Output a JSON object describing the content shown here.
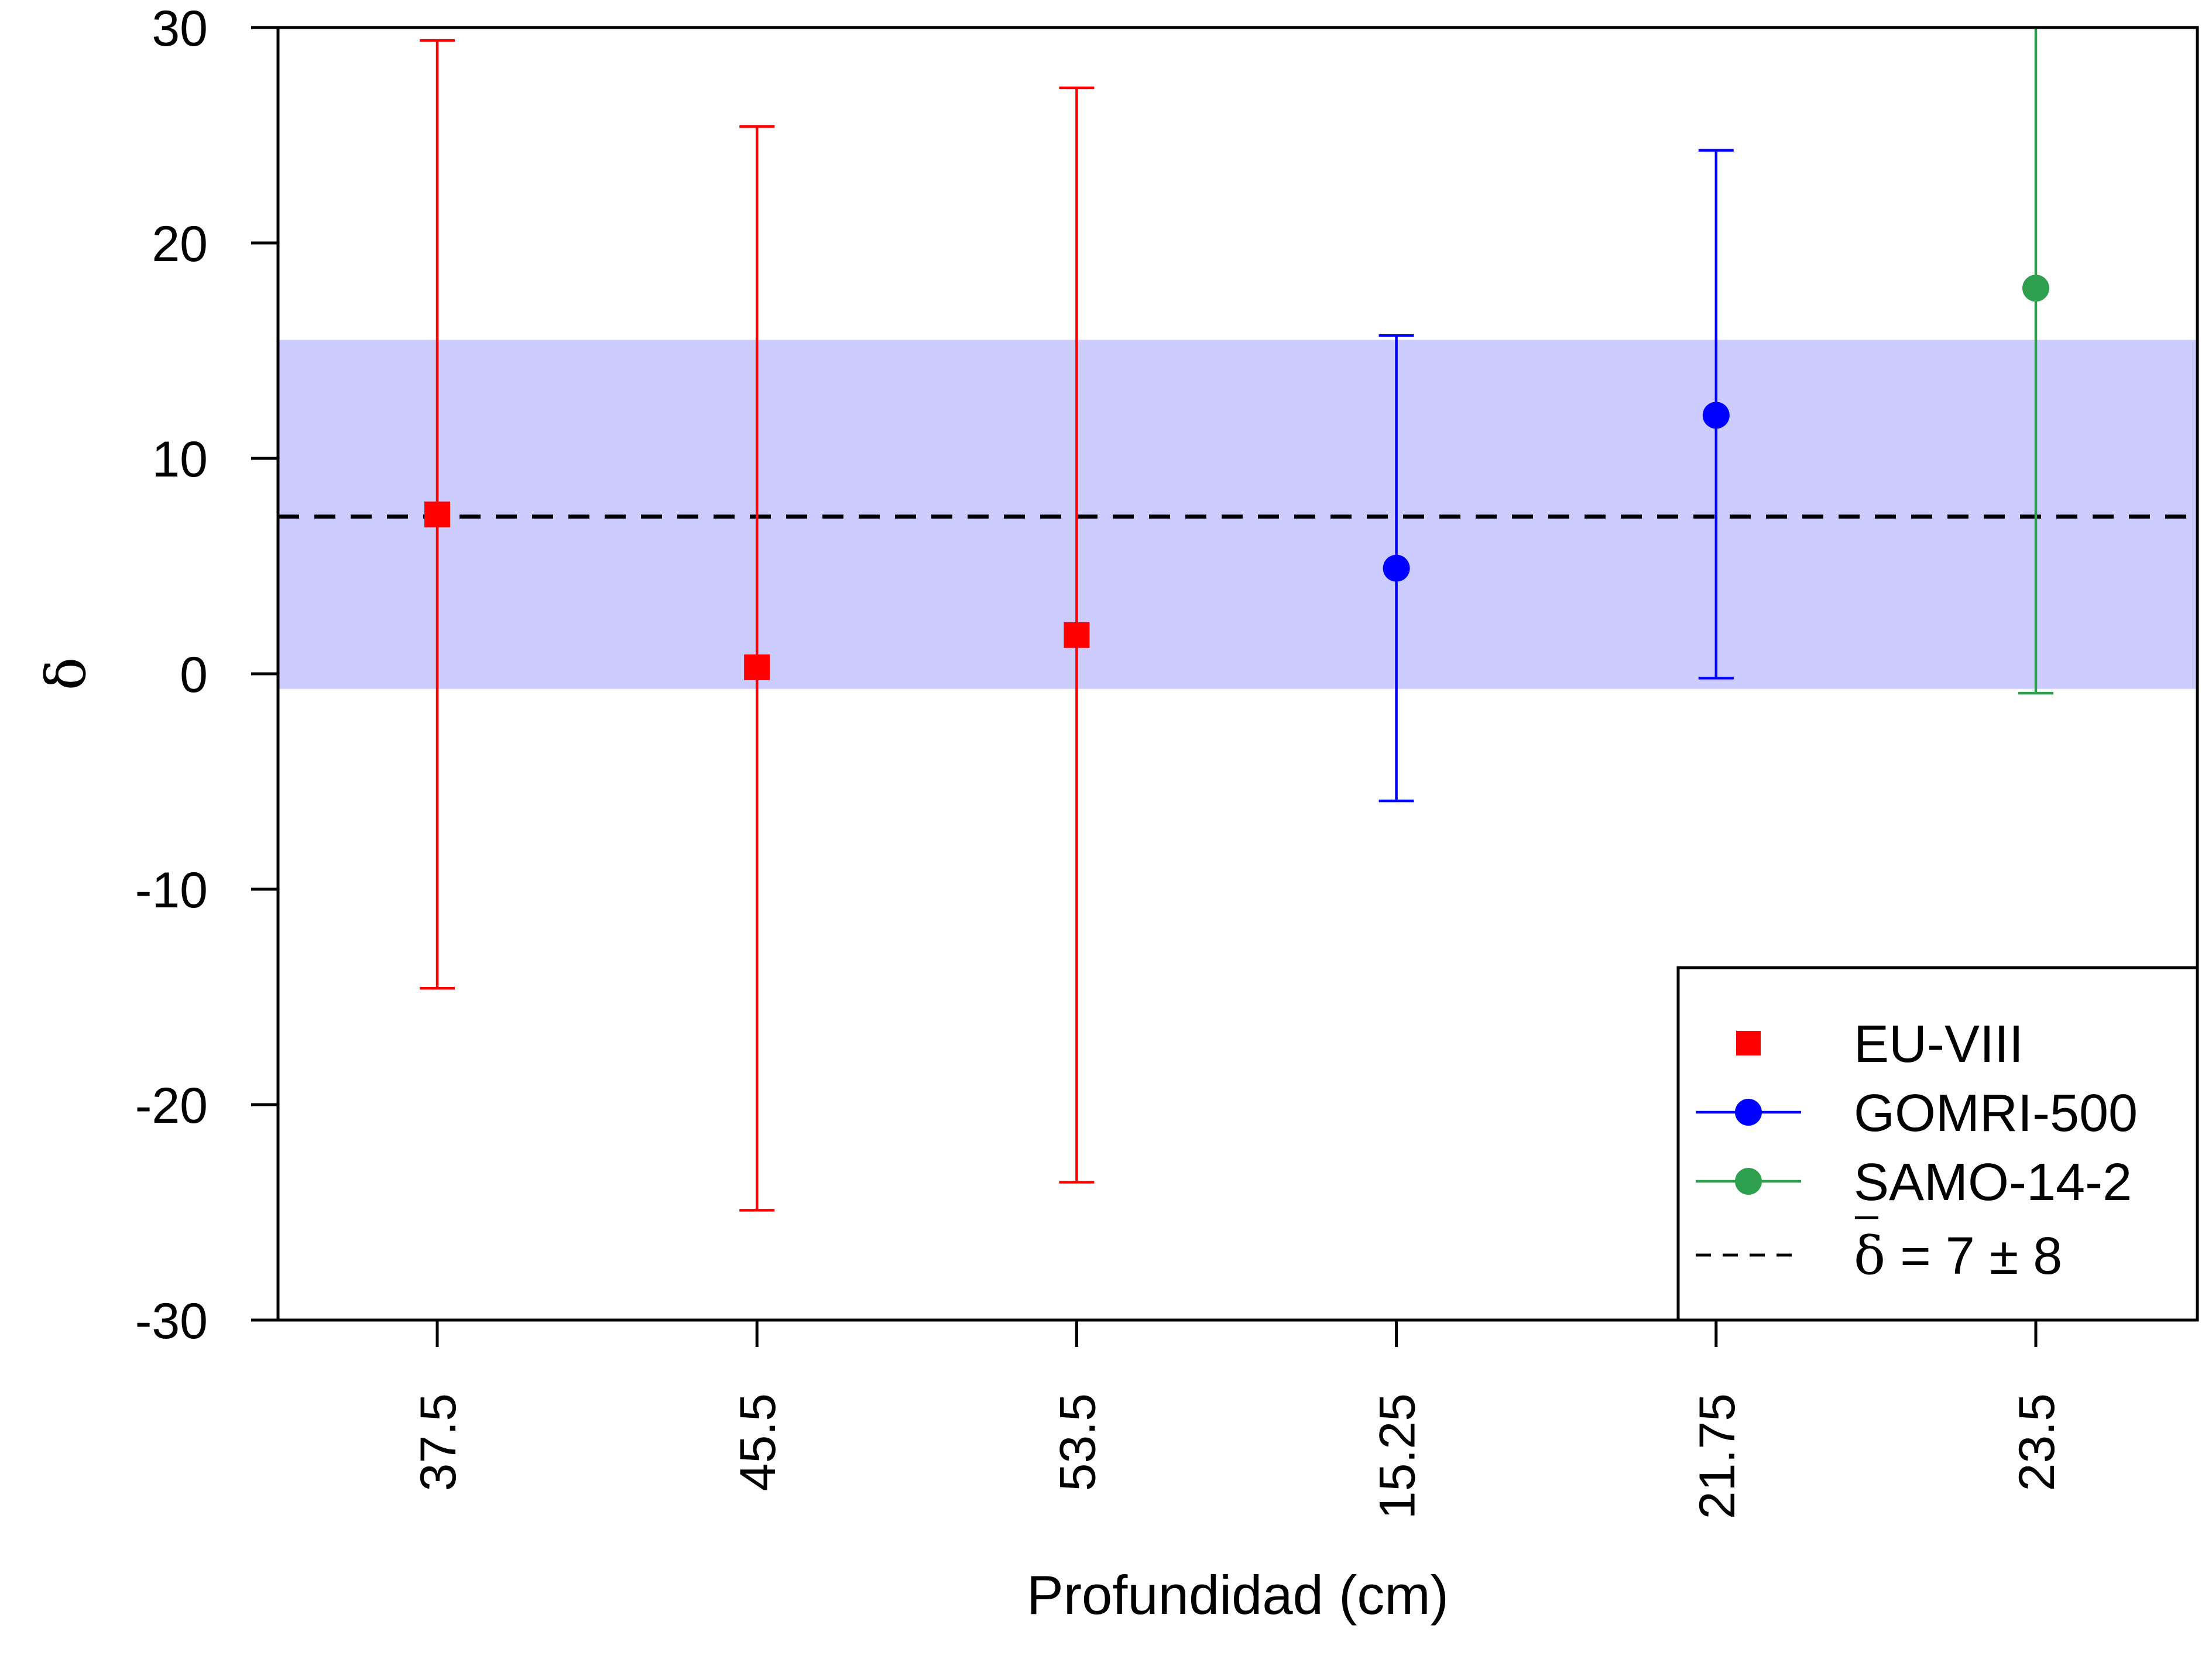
{
  "chart_data": {
    "type": "scatter",
    "xlabel": "Profundidad (cm)",
    "ylabel": "δ",
    "ylim": [
      -30,
      30
    ],
    "yticks": [
      30,
      20,
      10,
      0,
      -10,
      -20,
      -30
    ],
    "ytick_labels": [
      "30",
      "20",
      "10",
      "0",
      "-10",
      "-20",
      "-30"
    ],
    "categories": [
      "37.5",
      "45.5",
      "53.5",
      "15.25",
      "21.75",
      "23.5"
    ],
    "grid": false,
    "legend_placement": "bottom-right",
    "series": [
      {
        "name": "EU-VIII",
        "color": "#ff0000",
        "marker": "square",
        "points": [
          {
            "x": "37.5",
            "y": 7.4,
            "lower": -14.6,
            "upper": 29.4
          },
          {
            "x": "45.5",
            "y": 0.3,
            "lower": -24.9,
            "upper": 25.4
          },
          {
            "x": "53.5",
            "y": 1.8,
            "lower": -23.6,
            "upper": 27.2
          }
        ]
      },
      {
        "name": "GOMRI-500",
        "color": "#0000ff",
        "marker": "circle",
        "points": [
          {
            "x": "15.25",
            "y": 4.9,
            "lower": -5.9,
            "upper": 15.7
          },
          {
            "x": "21.75",
            "y": 12.0,
            "lower": -0.2,
            "upper": 24.3
          }
        ]
      },
      {
        "name": "SAMO-14-2",
        "color": "#2e9e4f",
        "marker": "circle",
        "points": [
          {
            "x": "23.5",
            "y": 17.9,
            "lower": -0.9,
            "upper": 30.0
          }
        ]
      }
    ],
    "mean_line": {
      "value": 7.3,
      "style": "dashed",
      "color": "#000000"
    },
    "band": {
      "lower": -0.7,
      "upper": 15.5,
      "color": "#ccccff"
    },
    "legend_mean": {
      "symbol": "δ",
      "equals": "=",
      "value": "7",
      "pm": "±",
      "error": "8"
    }
  }
}
